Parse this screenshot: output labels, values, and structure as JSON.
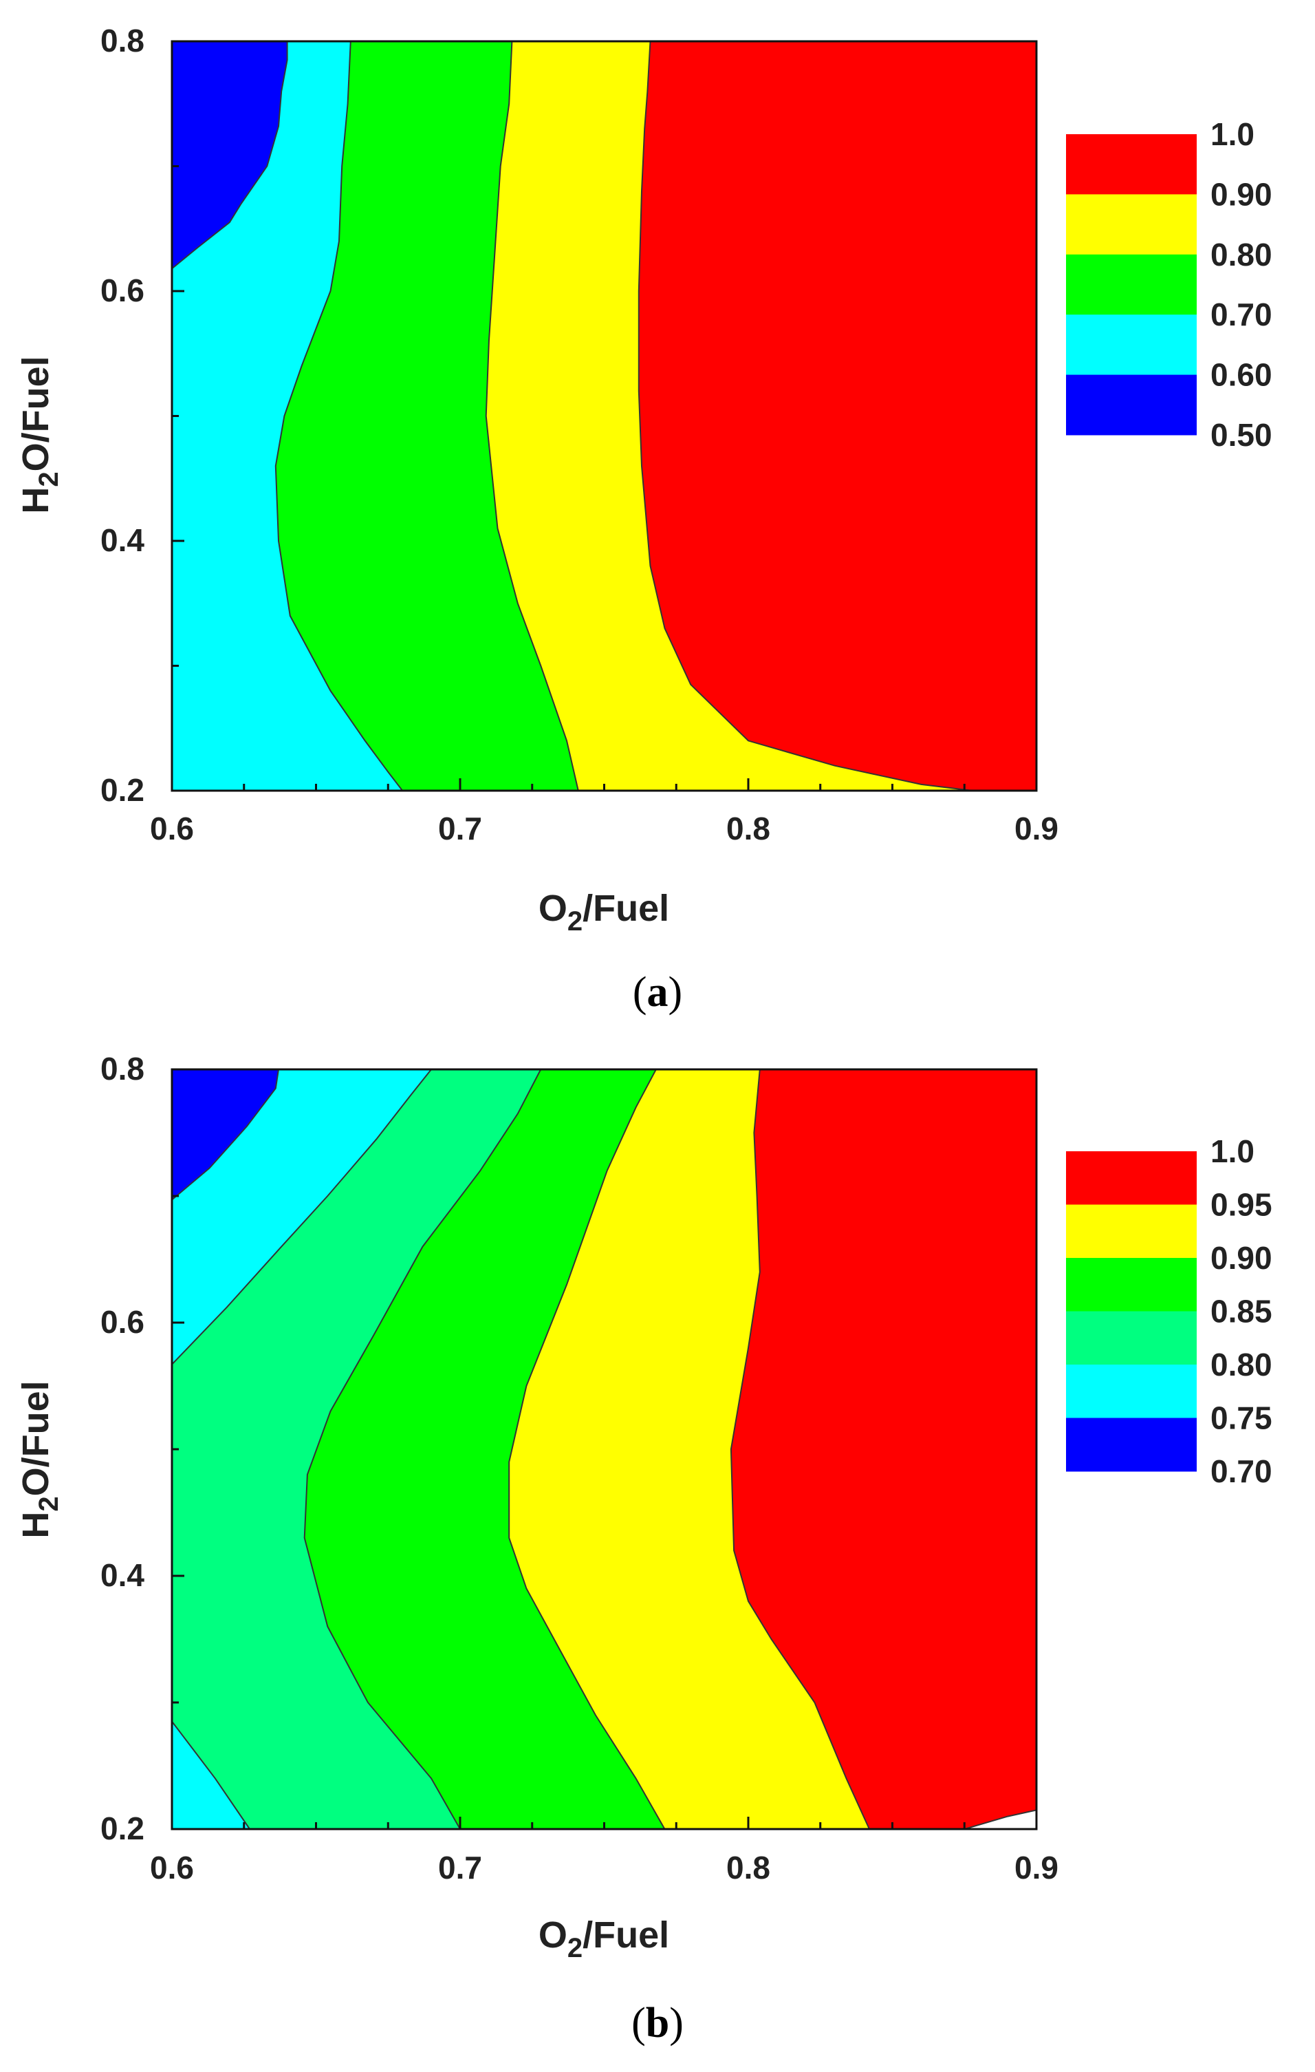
{
  "figure_panels": [
    {
      "caption_letter": "a",
      "xlabel": {
        "main": "O",
        "sub": "2",
        "rest": "/Fuel"
      },
      "ylabel": {
        "main": "H",
        "sub": "2",
        "rest": "O/Fuel"
      },
      "x_ticks": [
        "0.6",
        "0.7",
        "0.8",
        "0.9"
      ],
      "y_ticks": [
        "0.2",
        "0.4",
        "0.6",
        "0.8"
      ],
      "legend_labels": [
        "1.0",
        "0.90",
        "0.80",
        "0.70",
        "0.60",
        "0.50"
      ]
    },
    {
      "caption_letter": "b",
      "xlabel": {
        "main": "O",
        "sub": "2",
        "rest": "/Fuel"
      },
      "ylabel": {
        "main": "H",
        "sub": "2",
        "rest": "O/Fuel"
      },
      "x_ticks": [
        "0.6",
        "0.7",
        "0.8",
        "0.9"
      ],
      "y_ticks": [
        "0.2",
        "0.4",
        "0.6",
        "0.8"
      ],
      "legend_labels": [
        "1.0",
        "0.95",
        "0.90",
        "0.85",
        "0.80",
        "0.75",
        "0.70"
      ]
    }
  ],
  "chart_data": [
    {
      "type": "contour",
      "panel": "a",
      "xlabel": "O2/Fuel",
      "ylabel": "H2O/Fuel",
      "xlim": [
        0.6,
        0.9
      ],
      "ylim": [
        0.2,
        0.8
      ],
      "levels": [
        0.5,
        0.6,
        0.7,
        0.8,
        0.9,
        1.0
      ],
      "level_colors": [
        "#0000ff",
        "#00ffff",
        "#00ff00",
        "#ffff00",
        "#ff0000"
      ],
      "contour_lines": [
        {
          "level": 0.6,
          "points": [
            [
              0.6,
              0.618
            ],
            [
              0.609,
              0.635
            ],
            [
              0.62,
              0.655
            ],
            [
              0.624,
              0.67
            ],
            [
              0.633,
              0.7
            ],
            [
              0.637,
              0.732
            ],
            [
              0.638,
              0.76
            ],
            [
              0.64,
              0.785
            ],
            [
              0.64,
              0.8
            ]
          ]
        },
        {
          "level": 0.7,
          "points": [
            [
              0.68,
              0.2
            ],
            [
              0.675,
              0.215
            ],
            [
              0.667,
              0.24
            ],
            [
              0.655,
              0.28
            ],
            [
              0.641,
              0.34
            ],
            [
              0.637,
              0.4
            ],
            [
              0.636,
              0.46
            ],
            [
              0.639,
              0.5
            ],
            [
              0.645,
              0.54
            ],
            [
              0.65,
              0.57
            ],
            [
              0.655,
              0.6
            ],
            [
              0.658,
              0.64
            ],
            [
              0.659,
              0.7
            ],
            [
              0.661,
              0.75
            ],
            [
              0.662,
              0.8
            ]
          ]
        },
        {
          "level": 0.8,
          "points": [
            [
              0.741,
              0.2
            ],
            [
              0.737,
              0.24
            ],
            [
              0.728,
              0.3
            ],
            [
              0.72,
              0.35
            ],
            [
              0.713,
              0.41
            ],
            [
              0.709,
              0.5
            ],
            [
              0.71,
              0.56
            ],
            [
              0.712,
              0.63
            ],
            [
              0.714,
              0.7
            ],
            [
              0.717,
              0.75
            ],
            [
              0.718,
              0.8
            ]
          ]
        },
        {
          "level": 0.9,
          "points": [
            [
              0.878,
              0.2
            ],
            [
              0.86,
              0.205
            ],
            [
              0.83,
              0.22
            ],
            [
              0.8,
              0.24
            ],
            [
              0.78,
              0.285
            ],
            [
              0.771,
              0.33
            ],
            [
              0.766,
              0.38
            ],
            [
              0.763,
              0.46
            ],
            [
              0.762,
              0.52
            ],
            [
              0.762,
              0.6
            ],
            [
              0.763,
              0.68
            ],
            [
              0.764,
              0.73
            ],
            [
              0.765,
              0.76
            ],
            [
              0.766,
              0.8
            ]
          ]
        }
      ]
    },
    {
      "type": "contour",
      "panel": "b",
      "xlabel": "O2/Fuel",
      "ylabel": "H2O/Fuel",
      "xlim": [
        0.6,
        0.9
      ],
      "ylim": [
        0.2,
        0.8
      ],
      "levels": [
        0.7,
        0.75,
        0.8,
        0.85,
        0.9,
        0.95,
        1.0
      ],
      "level_colors": [
        "#0000ff",
        "#00ffff",
        "#00ff80",
        "#00ff00",
        "#ffff00",
        "#ff0000"
      ],
      "contour_lines": [
        {
          "level": 0.75,
          "points": [
            [
              0.6,
              0.697
            ],
            [
              0.613,
              0.722
            ],
            [
              0.626,
              0.755
            ],
            [
              0.636,
              0.785
            ],
            [
              0.637,
              0.8
            ]
          ]
        },
        {
          "level": 0.8,
          "points": [
            [
              0.627,
              0.2
            ],
            [
              0.615,
              0.24
            ],
            [
              0.6,
              0.285
            ]
          ]
        },
        {
          "level": 0.8,
          "points": [
            [
              0.6,
              0.567
            ],
            [
              0.619,
              0.612
            ],
            [
              0.638,
              0.66
            ],
            [
              0.654,
              0.7
            ],
            [
              0.671,
              0.745
            ],
            [
              0.683,
              0.78
            ],
            [
              0.69,
              0.8
            ]
          ]
        },
        {
          "level": 0.85,
          "points": [
            [
              0.7,
              0.2
            ],
            [
              0.69,
              0.24
            ],
            [
              0.668,
              0.3
            ],
            [
              0.654,
              0.36
            ],
            [
              0.646,
              0.43
            ],
            [
              0.647,
              0.48
            ],
            [
              0.655,
              0.53
            ],
            [
              0.67,
              0.59
            ],
            [
              0.687,
              0.66
            ],
            [
              0.707,
              0.72
            ],
            [
              0.72,
              0.765
            ],
            [
              0.728,
              0.8
            ]
          ]
        },
        {
          "level": 0.9,
          "points": [
            [
              0.771,
              0.2
            ],
            [
              0.761,
              0.24
            ],
            [
              0.747,
              0.29
            ],
            [
              0.735,
              0.34
            ],
            [
              0.723,
              0.39
            ],
            [
              0.717,
              0.43
            ],
            [
              0.717,
              0.49
            ],
            [
              0.723,
              0.55
            ],
            [
              0.737,
              0.63
            ],
            [
              0.751,
              0.72
            ],
            [
              0.761,
              0.77
            ],
            [
              0.768,
              0.8
            ]
          ]
        },
        {
          "level": 0.95,
          "points": [
            [
              0.842,
              0.2
            ],
            [
              0.834,
              0.24
            ],
            [
              0.823,
              0.3
            ],
            [
              0.808,
              0.35
            ],
            [
              0.8,
              0.38
            ],
            [
              0.795,
              0.42
            ],
            [
              0.794,
              0.5
            ],
            [
              0.8,
              0.58
            ],
            [
              0.804,
              0.64
            ],
            [
              0.803,
              0.7
            ],
            [
              0.802,
              0.75
            ],
            [
              0.804,
              0.8
            ]
          ]
        },
        {
          "level": 1.0,
          "points": [
            [
              0.875,
              0.2
            ],
            [
              0.89,
              0.21
            ],
            [
              0.9,
              0.215
            ]
          ]
        }
      ]
    }
  ]
}
